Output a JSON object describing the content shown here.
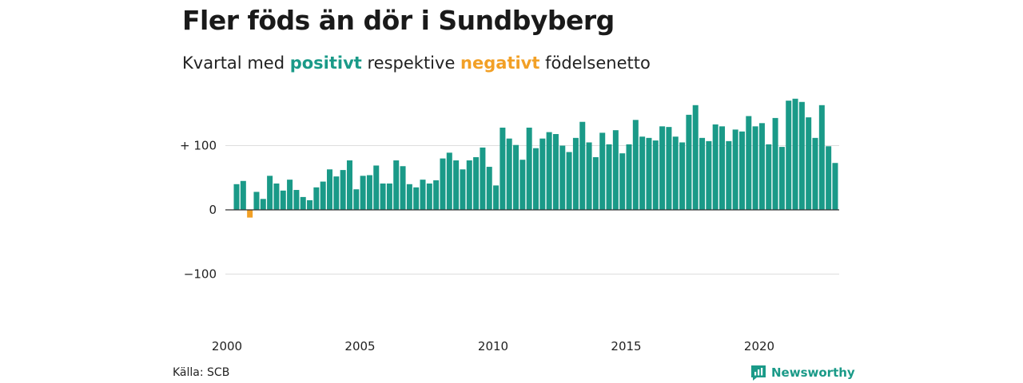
{
  "title": "Fler föds än dör i Sundbyberg",
  "subtitle": {
    "prefix": "Kvartal med ",
    "positive": "positivt",
    "middle": " respektive ",
    "negative": "negativt",
    "suffix": " födelsenetto"
  },
  "source": "Källa: SCB",
  "brand": "Newsworthy",
  "colors": {
    "positive": "#1a9a88",
    "negative": "#f2a026",
    "grid": "#dddddd",
    "zero": "#333333"
  },
  "chart_data": {
    "type": "bar",
    "ylim": [
      -150,
      200
    ],
    "yticks": [
      {
        "value": 100,
        "label": "+ 100"
      },
      {
        "value": 0,
        "label": "0"
      },
      {
        "value": -100,
        "label": "−100"
      }
    ],
    "xticks": [
      {
        "year": 2000,
        "label": "2000"
      },
      {
        "year": 2005,
        "label": "2005"
      },
      {
        "year": 2010,
        "label": "2010"
      },
      {
        "year": 2015,
        "label": "2015"
      },
      {
        "year": 2020,
        "label": "2020"
      }
    ],
    "start_year": 2000,
    "values": [
      40,
      45,
      -12,
      28,
      17,
      53,
      41,
      30,
      47,
      31,
      20,
      15,
      35,
      44,
      63,
      52,
      62,
      77,
      32,
      53,
      54,
      69,
      41,
      41,
      77,
      68,
      40,
      35,
      47,
      41,
      46,
      80,
      89,
      77,
      63,
      77,
      82,
      97,
      67,
      38,
      128,
      111,
      101,
      78,
      128,
      96,
      111,
      121,
      118,
      100,
      90,
      112,
      137,
      105,
      82,
      120,
      102,
      124,
      88,
      102,
      140,
      114,
      112,
      108,
      130,
      129,
      114,
      105,
      148,
      163,
      112,
      107,
      133,
      130,
      107,
      125,
      122,
      146,
      130,
      135,
      102,
      143,
      98,
      170,
      173,
      168,
      144,
      112,
      163,
      99,
      73
    ]
  }
}
